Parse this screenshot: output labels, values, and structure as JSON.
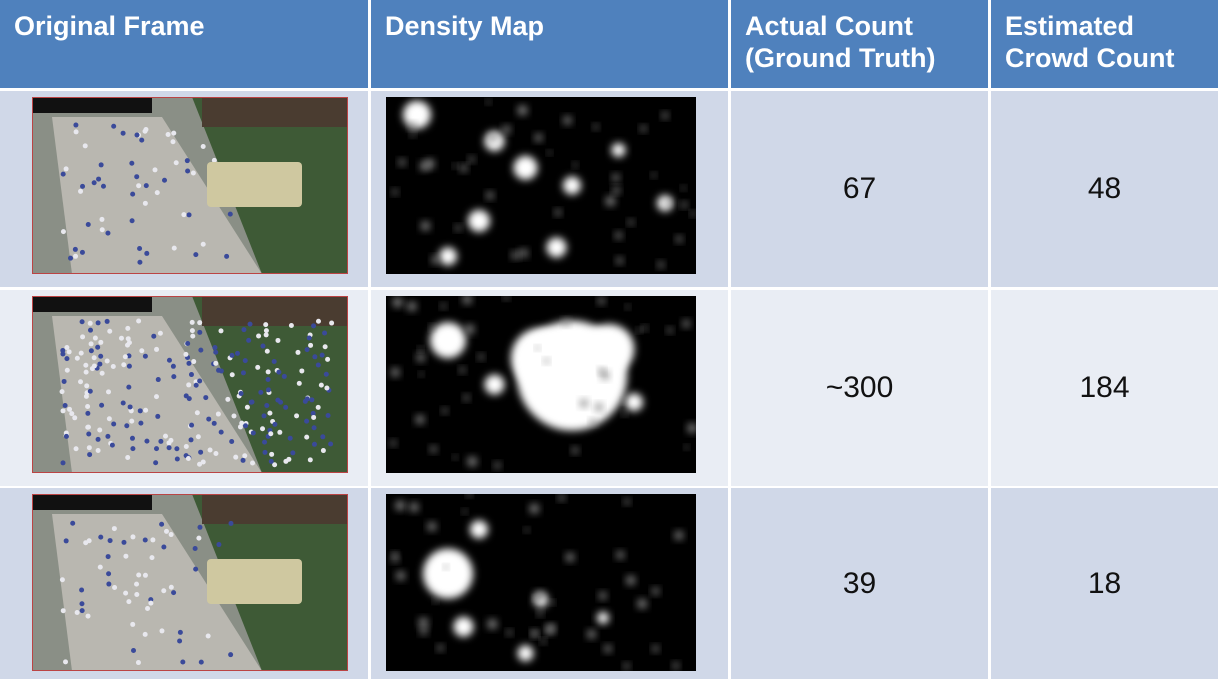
{
  "table": {
    "header": [
      "Original Frame",
      "Density Map",
      "Actual Count (Ground Truth)",
      "Estimated Crowd Count"
    ],
    "rows": [
      [
        67,
        48
      ],
      [
        "~300",
        184
      ],
      [
        39,
        18
      ]
    ]
  }
}
